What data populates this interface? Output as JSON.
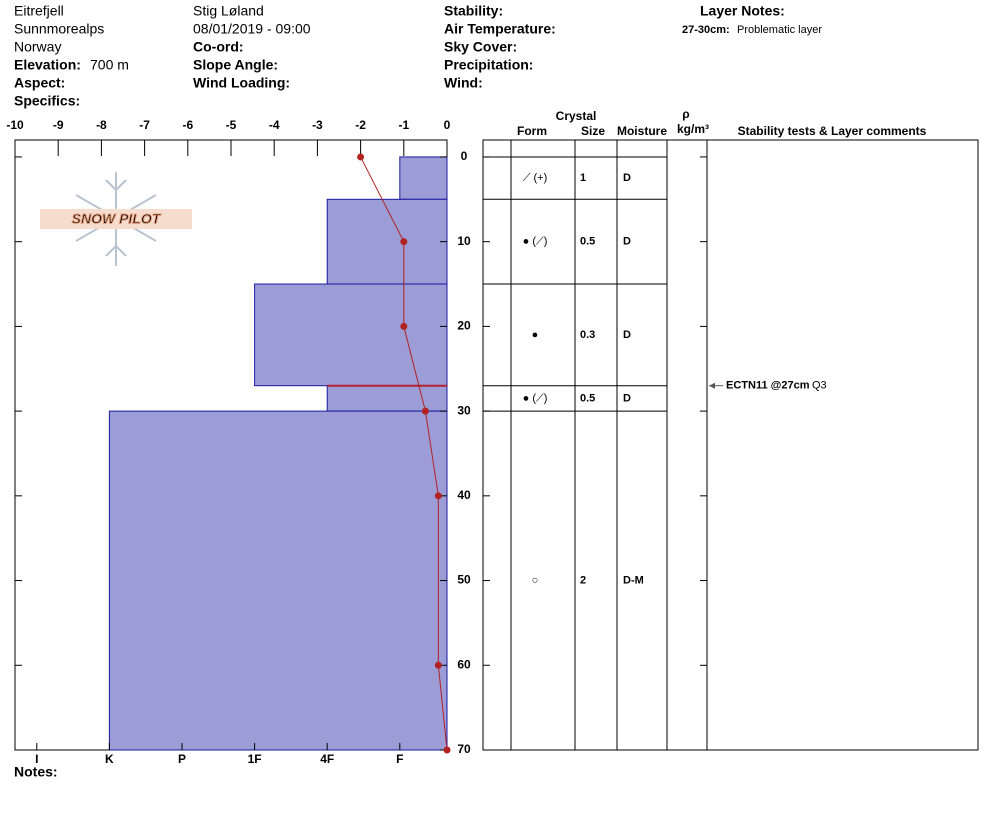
{
  "header": {
    "location": [
      "Eitrefjell",
      "Sunnmorealps",
      "Norway"
    ],
    "elevation": {
      "label": "Elevation:",
      "value": "700 m"
    },
    "aspect": "Aspect:",
    "specifics": "Specifics:",
    "observer": "Stig Løland",
    "datetime": "08/01/2019 - 09:00",
    "coord": "Co-ord:",
    "slope_angle": "Slope Angle:",
    "wind_loading": "Wind Loading:",
    "stability": "Stability:",
    "air_temperature": "Air Temperature:",
    "sky_cover": "Sky Cover:",
    "precipitation": "Precipitation:",
    "wind": "Wind:",
    "layer_notes": {
      "title": "Layer Notes:",
      "items": [
        {
          "range": "27-30cm:",
          "text": "Problematic layer"
        }
      ]
    }
  },
  "logo": "SNOW PILOT",
  "notes": "Notes:",
  "chart_data": {
    "type": "snow-profile",
    "xlim": [
      -10,
      0
    ],
    "xticks": [
      -10,
      -9,
      -8,
      -7,
      -6,
      -5,
      -4,
      -3,
      -2,
      -1,
      0
    ],
    "ylim": [
      -2,
      70
    ],
    "yticks": [
      0,
      10,
      20,
      30,
      40,
      50,
      60,
      70
    ],
    "hardness_lim": [
      0.35,
      6.3
    ],
    "hardness_ticks": [
      {
        "value": 6,
        "label": "I"
      },
      {
        "value": 5,
        "label": "K"
      },
      {
        "value": 4,
        "label": "P"
      },
      {
        "value": 3,
        "label": "1F"
      },
      {
        "value": 2,
        "label": "4F"
      },
      {
        "value": 1,
        "label": "F"
      }
    ],
    "layers": {
      "top": [
        0,
        5,
        15,
        27,
        30
      ],
      "bottom": [
        5,
        15,
        27,
        30,
        70
      ],
      "hardness": [
        1,
        2,
        3,
        2,
        5
      ],
      "color": "#9c9cd6",
      "edge": "#1a1aa0"
    },
    "concern_depth": 27,
    "concern_color": "#b22234",
    "temperature": {
      "depth": [
        0,
        10,
        20,
        30,
        40,
        60,
        70
      ],
      "values": [
        -2,
        -1,
        -1,
        -0.5,
        -0.2,
        -0.2,
        0
      ],
      "color": "#b22222"
    },
    "table": {
      "crystal": "Crystal",
      "form": "Form",
      "size": "Size",
      "moisture": "Moisture",
      "rho": "ρ",
      "density_unit": "kg/m³",
      "comments": "Stability tests & Layer comments",
      "forms": [
        "⟋ (+)",
        "● (⟋)",
        "●",
        "● (⟋)",
        "○"
      ],
      "sizes": [
        1,
        0.5,
        0.3,
        0.5,
        2
      ],
      "moistures": [
        "D",
        "D",
        "D",
        "D",
        "D-M"
      ]
    },
    "stability_tests": [
      {
        "depth": 27,
        "test": "ECTN11 @27cm",
        "quality": "Q3"
      }
    ]
  }
}
